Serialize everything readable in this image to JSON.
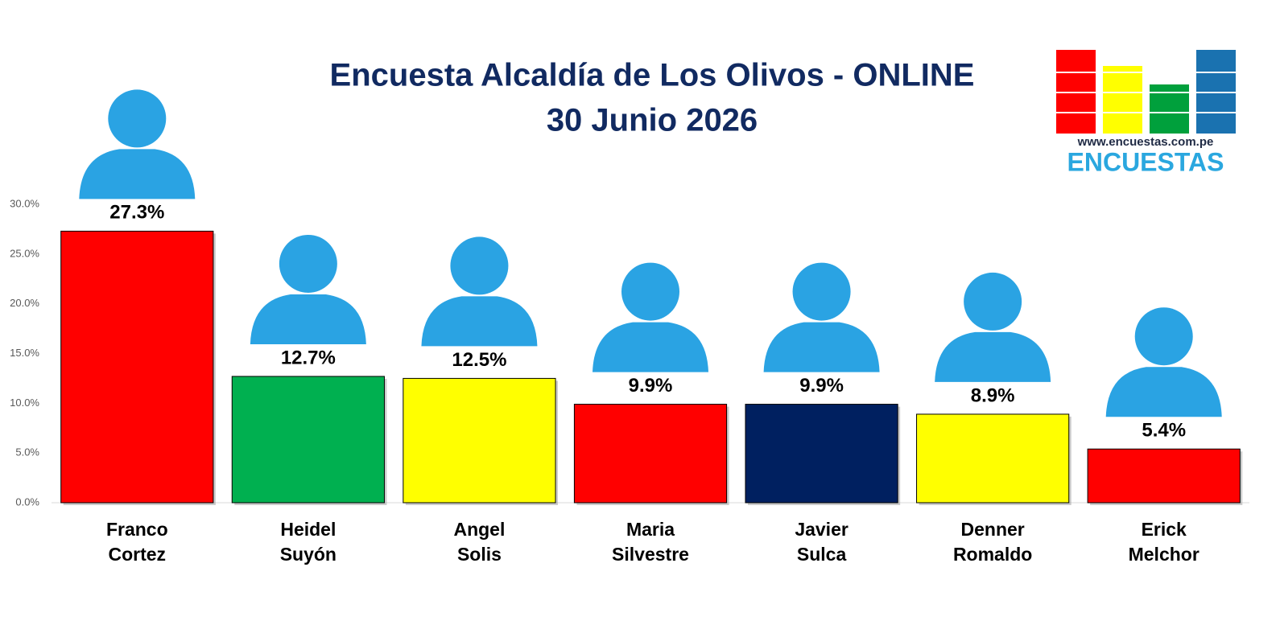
{
  "chart_data": {
    "type": "bar",
    "title": "Encuesta Alcaldía de Los Olivos - ONLINE",
    "subtitle": "30 Junio 2026",
    "logo_url": "www.encuestas.com.pe",
    "logo_name": "ENCUESTAS",
    "categories": [
      [
        "Franco",
        "Cortez"
      ],
      [
        "Heidel",
        "Suyón"
      ],
      [
        "Angel",
        "Solis"
      ],
      [
        "Maria",
        "Silvestre"
      ],
      [
        "Javier",
        "Sulca"
      ],
      [
        "Denner",
        "Romaldo"
      ],
      [
        "Erick",
        "Melchor"
      ]
    ],
    "values": [
      27.3,
      12.7,
      12.5,
      9.9,
      9.9,
      8.9,
      5.4
    ],
    "value_labels": [
      "27.3%",
      "12.7%",
      "12.5%",
      "9.9%",
      "9.9%",
      "8.9%",
      "5.4%"
    ],
    "colors": [
      "#ff0000",
      "#00b050",
      "#ffff00",
      "#ff0000",
      "#002060",
      "#ffff00",
      "#ff0000"
    ],
    "ylim": [
      0,
      30
    ],
    "yticks": [
      {
        "value": 0,
        "label": "0.0%"
      },
      {
        "value": 5,
        "label": "5.0%"
      },
      {
        "value": 10,
        "label": "10.0%"
      },
      {
        "value": 15,
        "label": "15.0%"
      },
      {
        "value": 20,
        "label": "20.0%"
      },
      {
        "value": 25,
        "label": "25.0%"
      },
      {
        "value": 30,
        "label": "30.0%"
      }
    ],
    "grid": false
  }
}
